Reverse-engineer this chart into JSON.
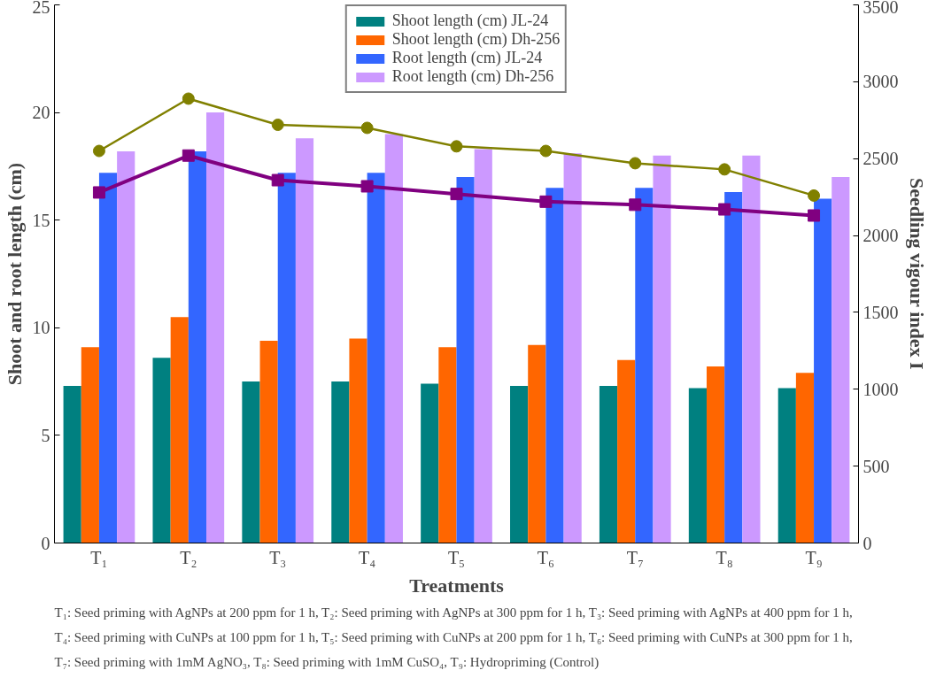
{
  "chart_data": {
    "type": "bar",
    "xlabel": "Treatments",
    "ylabel": "Shoot and root length (cm)",
    "y2label": "Seedling vigour index I",
    "categories": [
      "T₁",
      "T₂",
      "T₃",
      "T₄",
      "T₅",
      "T₆",
      "T₇",
      "T₈",
      "T₉"
    ],
    "series": [
      {
        "name": "Shoot length (cm) JL-24",
        "color": "#008080",
        "values": [
          7.3,
          8.6,
          7.5,
          7.5,
          7.4,
          7.3,
          7.3,
          7.2,
          7.2
        ]
      },
      {
        "name": "Shoot length (cm) Dh-256",
        "color": "#ff6600",
        "values": [
          9.1,
          10.5,
          9.4,
          9.5,
          9.1,
          9.2,
          8.5,
          8.2,
          7.9
        ]
      },
      {
        "name": "Root length (cm) JL-24",
        "color": "#3366ff",
        "values": [
          17.2,
          18.2,
          17.2,
          17.2,
          17.0,
          16.5,
          16.5,
          16.3,
          16.0
        ]
      },
      {
        "name": "Root length (cm) Dh-256",
        "color": "#cc99ff",
        "values": [
          18.2,
          20.0,
          18.8,
          19.0,
          18.3,
          18.1,
          18.0,
          18.0,
          17.0
        ]
      },
      {
        "type": "line",
        "axis": "y2",
        "marker": "circle",
        "color": "#808000",
        "values": [
          2550,
          2890,
          2720,
          2700,
          2580,
          2550,
          2470,
          2430,
          2260
        ]
      },
      {
        "type": "line",
        "axis": "y2",
        "marker": "square",
        "color": "#800080",
        "values": [
          2280,
          2520,
          2360,
          2320,
          2270,
          2220,
          2200,
          2170,
          2130
        ]
      }
    ],
    "ylim": [
      0,
      25
    ],
    "yticks": [
      0,
      5,
      10,
      15,
      20,
      25
    ],
    "y2lim": [
      0,
      3500
    ],
    "y2ticks": [
      0,
      500,
      1000,
      1500,
      2000,
      2500,
      3000,
      3500
    ],
    "grid": false,
    "legend": "top",
    "annotations": [
      "T₁: Seed priming with AgNPs at 200 ppm for 1 h, T₂: Seed priming with AgNPs at 300 ppm for 1 h, T₃: Seed priming with AgNPs at 400 ppm for 1 h,",
      "T₄: Seed priming with CuNPs at 100 ppm for 1 h, T₅: Seed priming with CuNPs at 200 ppm for 1 h, T₆: Seed priming with CuNPs at 300 ppm for 1 h,",
      "T₇: Seed priming with 1mM AgNO₃, T₈: Seed priming with 1mM CuSO₄, T₉: Hydropriming (Control)"
    ]
  }
}
